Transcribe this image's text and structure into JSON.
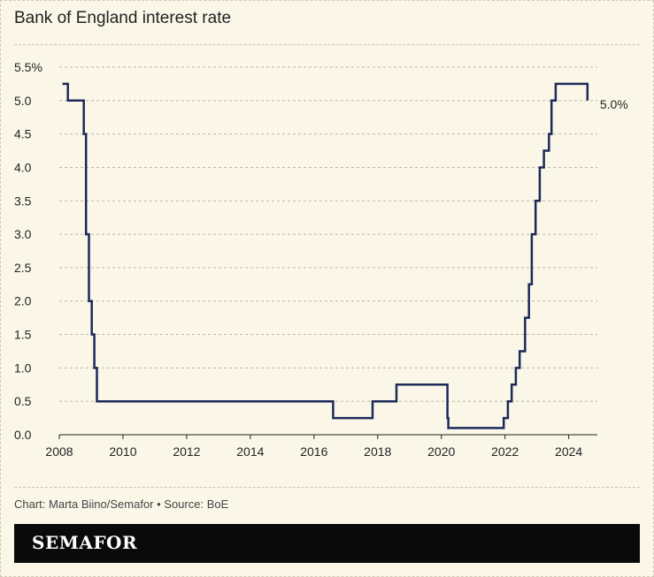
{
  "header": {
    "title": "Bank of England interest rate"
  },
  "footer": {
    "credit": "Chart: Marta Biino/Semafor • Source: BoE",
    "logo": "SEMAFOR"
  },
  "colors": {
    "line": "#1c2a5a",
    "background": "#fbf7e8",
    "grid": "#bdb7a2"
  },
  "chart_data": {
    "type": "line",
    "title": "Bank of England interest rate",
    "xlabel": "",
    "ylabel": "",
    "xlim": [
      2008,
      2024.9
    ],
    "ylim": [
      0,
      5.5
    ],
    "x_ticks": [
      "2008",
      "2010",
      "2012",
      "2014",
      "2016",
      "2018",
      "2020",
      "2022",
      "2024"
    ],
    "y_ticks": [
      "0.0",
      "0.5",
      "1.0",
      "1.5",
      "2.0",
      "2.5",
      "3.0",
      "3.5",
      "4.0",
      "4.5",
      "5.0",
      "5.5%"
    ],
    "grid": true,
    "step": true,
    "end_label": "5.0%",
    "series": [
      {
        "values": [
          [
            2008.1,
            5.25
          ],
          [
            2008.27,
            5.0
          ],
          [
            2008.77,
            4.5
          ],
          [
            2008.84,
            3.0
          ],
          [
            2008.93,
            2.0
          ],
          [
            2009.02,
            1.5
          ],
          [
            2009.1,
            1.0
          ],
          [
            2009.18,
            0.5
          ],
          [
            2016.6,
            0.25
          ],
          [
            2017.84,
            0.5
          ],
          [
            2018.59,
            0.75
          ],
          [
            2020.19,
            0.25
          ],
          [
            2020.22,
            0.1
          ],
          [
            2021.96,
            0.25
          ],
          [
            2022.09,
            0.5
          ],
          [
            2022.21,
            0.75
          ],
          [
            2022.34,
            1.0
          ],
          [
            2022.46,
            1.25
          ],
          [
            2022.63,
            1.75
          ],
          [
            2022.75,
            2.25
          ],
          [
            2022.84,
            3.0
          ],
          [
            2022.96,
            3.5
          ],
          [
            2023.09,
            4.0
          ],
          [
            2023.22,
            4.25
          ],
          [
            2023.38,
            4.5
          ],
          [
            2023.46,
            5.0
          ],
          [
            2023.59,
            5.25
          ],
          [
            2024.59,
            5.0
          ]
        ]
      }
    ]
  }
}
